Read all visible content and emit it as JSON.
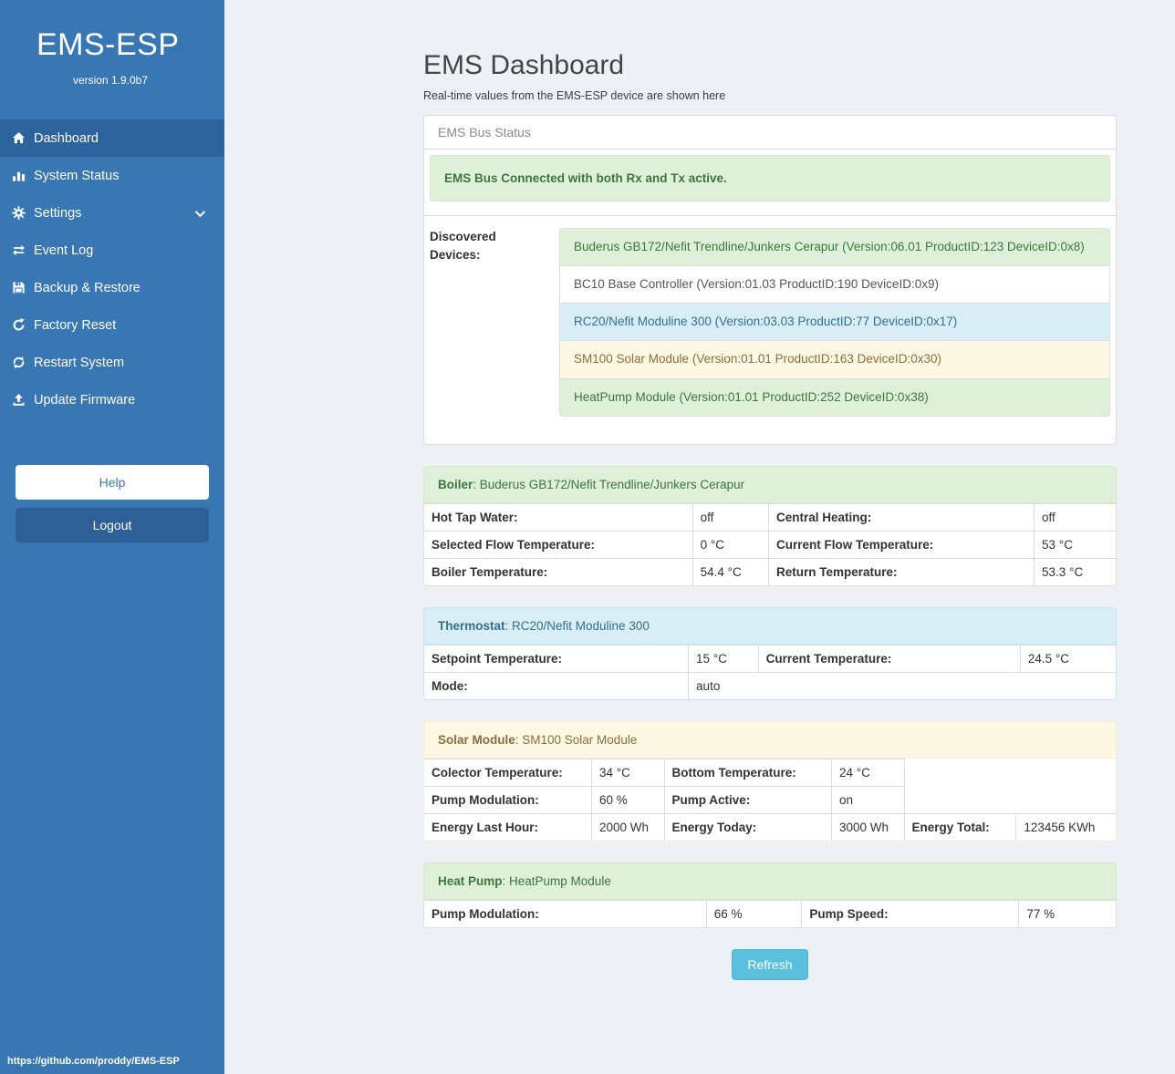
{
  "sidebar": {
    "brand": "EMS-ESP",
    "version": "version 1.9.0b7",
    "items": [
      {
        "label": "Dashboard",
        "icon": "home",
        "active": true
      },
      {
        "label": "System Status",
        "icon": "chart"
      },
      {
        "label": "Settings",
        "icon": "gear",
        "chevron": true
      },
      {
        "label": "Event Log",
        "icon": "exchange"
      },
      {
        "label": "Backup & Restore",
        "icon": "save"
      },
      {
        "label": "Factory Reset",
        "icon": "rotate"
      },
      {
        "label": "Restart System",
        "icon": "sync"
      },
      {
        "label": "Update Firmware",
        "icon": "upload"
      }
    ],
    "help_label": "Help",
    "logout_label": "Logout",
    "footer_link": "https://github.com/proddy/EMS-ESP"
  },
  "header": {
    "title": "EMS Dashboard",
    "subtitle": "Real-time values from the EMS-ESP device are shown here"
  },
  "bus_panel": {
    "title": "EMS Bus Status",
    "alert": "EMS Bus Connected with both Rx and Tx active.",
    "devices_label": "Discovered Devices:",
    "devices": [
      {
        "text": "Buderus GB172/Nefit Trendline/Junkers Cerapur (Version:06.01 ProductID:123 DeviceID:0x8)",
        "variant": "success"
      },
      {
        "text": "BC10 Base Controller (Version:01.03 ProductID:190 DeviceID:0x9)",
        "variant": "default"
      },
      {
        "text": "RC20/Nefit Moduline 300 (Version:03.03 ProductID:77 DeviceID:0x17)",
        "variant": "info"
      },
      {
        "text": "SM100 Solar Module (Version:01.01 ProductID:163 DeviceID:0x30)",
        "variant": "warning"
      },
      {
        "text": "HeatPump Module (Version:01.01 ProductID:252 DeviceID:0x38)",
        "variant": "success"
      }
    ]
  },
  "panels": [
    {
      "variant": "success",
      "title": "Boiler",
      "subtitle": ": Buderus GB172/Nefit Trendline/Junkers Cerapur",
      "rows": [
        [
          "Hot Tap Water:",
          "off",
          "Central Heating:",
          "off"
        ],
        [
          "Selected Flow Temperature:",
          "0 °C",
          "Current Flow Temperature:",
          "53 °C"
        ],
        [
          "Boiler Temperature:",
          "54.4 °C",
          "Return Temperature:",
          "53.3 °C"
        ]
      ]
    },
    {
      "variant": "info",
      "title": "Thermostat",
      "subtitle": ": RC20/Nefit Moduline 300",
      "rows": [
        [
          "Setpoint Temperature:",
          "15 °C",
          "Current Temperature:",
          "24.5 °C"
        ],
        [
          "Mode:",
          {
            "t": "auto",
            "span": 3
          }
        ]
      ]
    },
    {
      "variant": "warning",
      "title": "Solar Module",
      "subtitle": ": SM100 Solar Module",
      "rows": [
        [
          "Colector Temperature:",
          "34 °C",
          "Bottom Temperature:",
          "24 °C"
        ],
        [
          "Pump Modulation:",
          "60 %",
          "Pump Active:",
          "on"
        ],
        [
          "Energy Last Hour:",
          "2000 Wh",
          "Energy Today:",
          "3000 Wh",
          "Energy Total:",
          "123456 KWh"
        ]
      ]
    },
    {
      "variant": "success",
      "title": "Heat Pump",
      "subtitle": ": HeatPump Module",
      "rows": [
        [
          "Pump Modulation:",
          "66 %",
          "Pump Speed:",
          "77 %"
        ]
      ]
    }
  ],
  "refresh_label": "Refresh",
  "colors": {
    "sidebar_blue": "#3876b4",
    "sidebar_active": "#2d639c",
    "success_bg": "#dff0d8",
    "success_text": "#3c763d",
    "info_bg": "#d9edf7",
    "info_text": "#31708f",
    "warning_bg": "#fcf8e3",
    "warning_text": "#8a6d3b",
    "refresh_button": "#5bc0de"
  }
}
